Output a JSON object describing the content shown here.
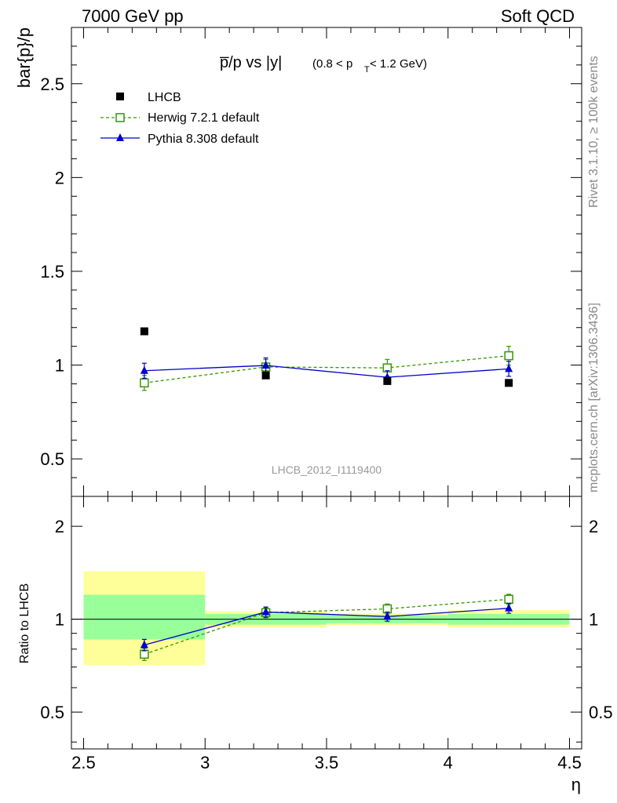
{
  "header": {
    "left": "7000 GeV pp",
    "right": "Soft QCD"
  },
  "side_labels": {
    "rivet": "Rivet 3.1.10, ≥ 100k events",
    "mcplots": "mcplots.cern.ch [arXiv:1306.3436]"
  },
  "colors": {
    "lhcb": "#000000",
    "herwig": "#339900",
    "pythia": "#0000cc",
    "band_inner": "#99ff99",
    "band_outer": "#ffff99"
  },
  "chart_data": [
    {
      "type": "line",
      "title_main": "p̅/p vs |y|",
      "title_sub_a": "(0.8 < p",
      "title_sub_t": "T",
      "title_sub_b": " < 1.2 GeV)",
      "ylabel": "bar{p}/p",
      "ylim": [
        0.3,
        2.8
      ],
      "xlim": [
        2.45,
        4.55
      ],
      "yticks": [
        0.5,
        1,
        1.5,
        2,
        2.5
      ],
      "ytick_labels": [
        "0.5",
        "1",
        "1.5",
        "2",
        "2.5"
      ],
      "watermark": "LHCB_2012_I1119400",
      "legend_position": "top-left",
      "series": [
        {
          "name": "LHCB",
          "x": [
            2.75,
            3.25,
            3.75,
            4.25
          ],
          "y": [
            1.18,
            0.945,
            0.915,
            0.905
          ],
          "yerr": [
            0.012,
            0.01,
            0.01,
            0.01
          ]
        },
        {
          "name": "Herwig 7.2.1 default",
          "x": [
            2.75,
            3.25,
            3.75,
            4.25
          ],
          "y": [
            0.905,
            0.99,
            0.985,
            1.05
          ],
          "yerr": [
            0.04,
            0.04,
            0.045,
            0.05
          ]
        },
        {
          "name": "Pythia 8.308 default",
          "x": [
            2.75,
            3.25,
            3.75,
            4.25
          ],
          "y": [
            0.97,
            0.998,
            0.935,
            0.98
          ],
          "yerr": [
            0.04,
            0.04,
            0.035,
            0.04
          ]
        }
      ]
    },
    {
      "type": "line",
      "ylabel": "Ratio to LHCB",
      "xlabel": "η",
      "ylim": [
        0.38,
        2.5
      ],
      "xlim": [
        2.45,
        4.55
      ],
      "yticks": [
        0.5,
        1,
        2
      ],
      "ytick_labels": [
        "0.5",
        "1",
        "2"
      ],
      "xticks": [
        2.5,
        3,
        3.5,
        4,
        4.5
      ],
      "xtick_labels": [
        "2.5",
        "3",
        "3.5",
        "4",
        "4.5"
      ],
      "bands": [
        {
          "xlo": 2.5,
          "xhi": 3.0,
          "inner": [
            0.86,
            1.2
          ],
          "outer": [
            0.71,
            1.43
          ]
        },
        {
          "xlo": 3.0,
          "xhi": 3.5,
          "inner": [
            0.96,
            1.04
          ],
          "outer": [
            0.94,
            1.06
          ]
        },
        {
          "xlo": 3.5,
          "xhi": 4.0,
          "inner": [
            0.97,
            1.03
          ],
          "outer": [
            0.955,
            1.045
          ]
        },
        {
          "xlo": 4.0,
          "xhi": 4.5,
          "inner": [
            0.96,
            1.04
          ],
          "outer": [
            0.94,
            1.07
          ]
        }
      ],
      "series": [
        {
          "name": "Herwig 7.2.1 default",
          "x": [
            2.75,
            3.25,
            3.75,
            4.25
          ],
          "y": [
            0.77,
            1.05,
            1.08,
            1.16
          ],
          "yerr": [
            0.035,
            0.04,
            0.04,
            0.045
          ]
        },
        {
          "name": "Pythia 8.308 default",
          "x": [
            2.75,
            3.25,
            3.75,
            4.25
          ],
          "y": [
            0.825,
            1.055,
            1.02,
            1.085
          ],
          "yerr": [
            0.035,
            0.04,
            0.035,
            0.04
          ]
        }
      ]
    }
  ]
}
